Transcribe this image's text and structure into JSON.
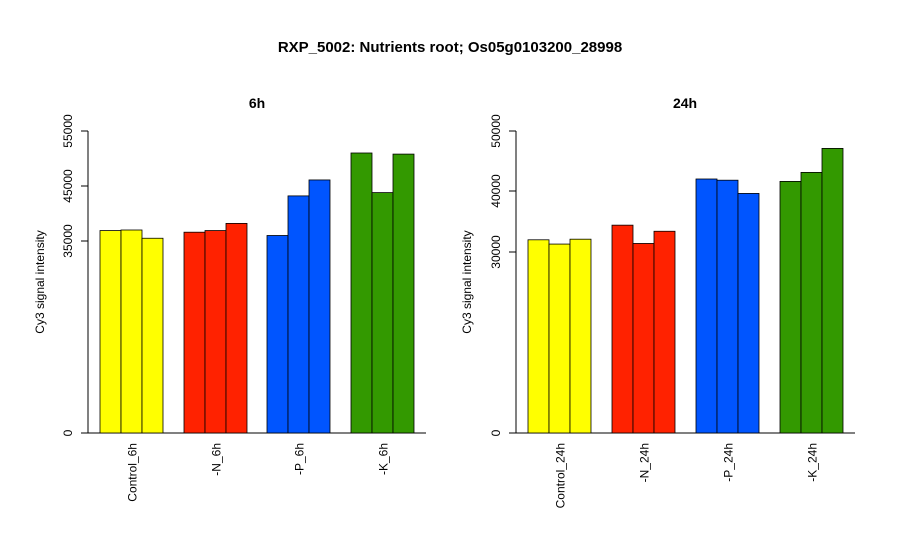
{
  "title": "RXP_5002: Nutrients root; Os05g0103200_28998",
  "chart_data": [
    {
      "type": "bar",
      "title": "6h",
      "ylabel": "Cy3 signal intensity",
      "y_ticks": [
        0,
        35000,
        45000,
        55000
      ],
      "y_tick_labels": [
        "0",
        "35000",
        "45000",
        "55000"
      ],
      "groups": [
        {
          "label": "Control_6h",
          "color": "#ffff00",
          "values": [
            36900,
            37000,
            35500
          ]
        },
        {
          "label": "-N_6h",
          "color": "#ff2200",
          "values": [
            36600,
            36900,
            38200
          ]
        },
        {
          "label": "-P_6h",
          "color": "#0055ff",
          "values": [
            36000,
            43200,
            46100
          ]
        },
        {
          "label": "-K_6h",
          "color": "#339900",
          "values": [
            51000,
            43800,
            50800
          ]
        }
      ]
    },
    {
      "type": "bar",
      "title": "24h",
      "ylabel": "Cy3 signal intensity",
      "y_ticks": [
        0,
        30000,
        40000,
        50000
      ],
      "y_tick_labels": [
        "0",
        "30000",
        "40000",
        "50000"
      ],
      "groups": [
        {
          "label": "Control_24h",
          "color": "#ffff00",
          "values": [
            32000,
            31300,
            32100
          ]
        },
        {
          "label": "-N_24h",
          "color": "#ff2200",
          "values": [
            34400,
            31400,
            33400
          ]
        },
        {
          "label": "-P_24h",
          "color": "#0055ff",
          "values": [
            42000,
            41800,
            39600
          ]
        },
        {
          "label": "-K_24h",
          "color": "#339900",
          "values": [
            41600,
            43100,
            47100
          ]
        }
      ]
    }
  ]
}
